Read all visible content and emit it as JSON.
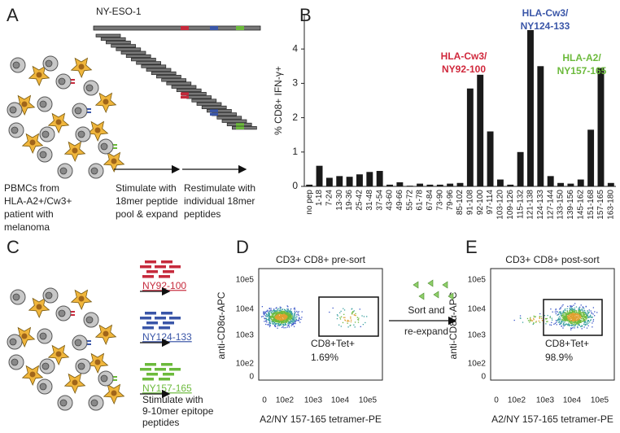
{
  "panel_labels": [
    "A",
    "B",
    "C",
    "D",
    "E"
  ],
  "panel_a": {
    "protein": "NY-ESO-1",
    "donor": [
      "PBMCs from",
      "HLA-A2+/Cw3+",
      "patient with",
      "melanoma"
    ],
    "step1": [
      "Stimulate with",
      "18mer peptide",
      "pool & expand"
    ],
    "step2": [
      "Restimulate with",
      "individual 18mer",
      "peptides"
    ]
  },
  "chart_data": {
    "type": "bar",
    "ylabel": "% CD8+ IFN-γ+",
    "categories": [
      "no pep",
      "1-18",
      "7-24",
      "13-30",
      "19-36",
      "25-42",
      "31-48",
      "37-54",
      "43-60",
      "49-66",
      "55-72",
      "61-78",
      "67-84",
      "73-90",
      "79-96",
      "85-102",
      "91-108",
      "92-100",
      "97-114",
      "103-120",
      "109-126",
      "115-132",
      "121-138",
      "124-133",
      "127-144",
      "133-150",
      "139-156",
      "145-162",
      "151-168",
      "157-165",
      "163-180"
    ],
    "values": [
      0.05,
      0.6,
      0.25,
      0.3,
      0.28,
      0.35,
      0.42,
      0.45,
      0.05,
      0.12,
      0.02,
      0.08,
      0.05,
      0.05,
      0.08,
      0.1,
      2.85,
      3.25,
      1.6,
      0.2,
      0.05,
      1.0,
      4.55,
      3.5,
      0.3,
      0.1,
      0.08,
      0.2,
      1.65,
      3.45,
      0.1
    ],
    "color": "#1a1a1a",
    "ylim": [
      0,
      5
    ],
    "yticks": [
      0,
      1,
      2,
      3,
      4
    ],
    "annotations": [
      {
        "lines": [
          "HLA-Cw3/",
          "NY92-100"
        ],
        "color": "#d0283c"
      },
      {
        "lines": [
          "HLA-Cw3/",
          "NY124-133"
        ],
        "color": "#3a56a8"
      },
      {
        "lines": [
          "HLA-A2/",
          "NY157-165"
        ],
        "color": "#6cba3c"
      }
    ]
  },
  "panel_c": {
    "epitopes": [
      {
        "text": "NY92-100",
        "color": "#c62a3c"
      },
      {
        "text": "NY124-133",
        "color": "#3a56a8"
      },
      {
        "text": "NY157-165",
        "color": "#6cba3c"
      }
    ],
    "step": [
      "Stimulate with",
      "9-10mer epitope",
      "peptides"
    ]
  },
  "flow": {
    "ylabel": "anti-CD8α-APC",
    "xlabel": "A2/NY 157-165 tetramer-PE",
    "yticks": [
      "10e5",
      "10e4",
      "10e3",
      "10e2",
      "0"
    ],
    "xticks": [
      "0",
      "10e2",
      "10e3",
      "10e4",
      "10e5"
    ],
    "gate": "CD8+Tet+"
  },
  "panel_d": {
    "title": "CD3+ CD8+ pre-sort",
    "percent": "1.69%"
  },
  "middle": [
    "Sort and",
    "re-expand"
  ],
  "panel_e": {
    "title": "CD3+ CD8+ post-sort",
    "percent": "98.9%"
  }
}
